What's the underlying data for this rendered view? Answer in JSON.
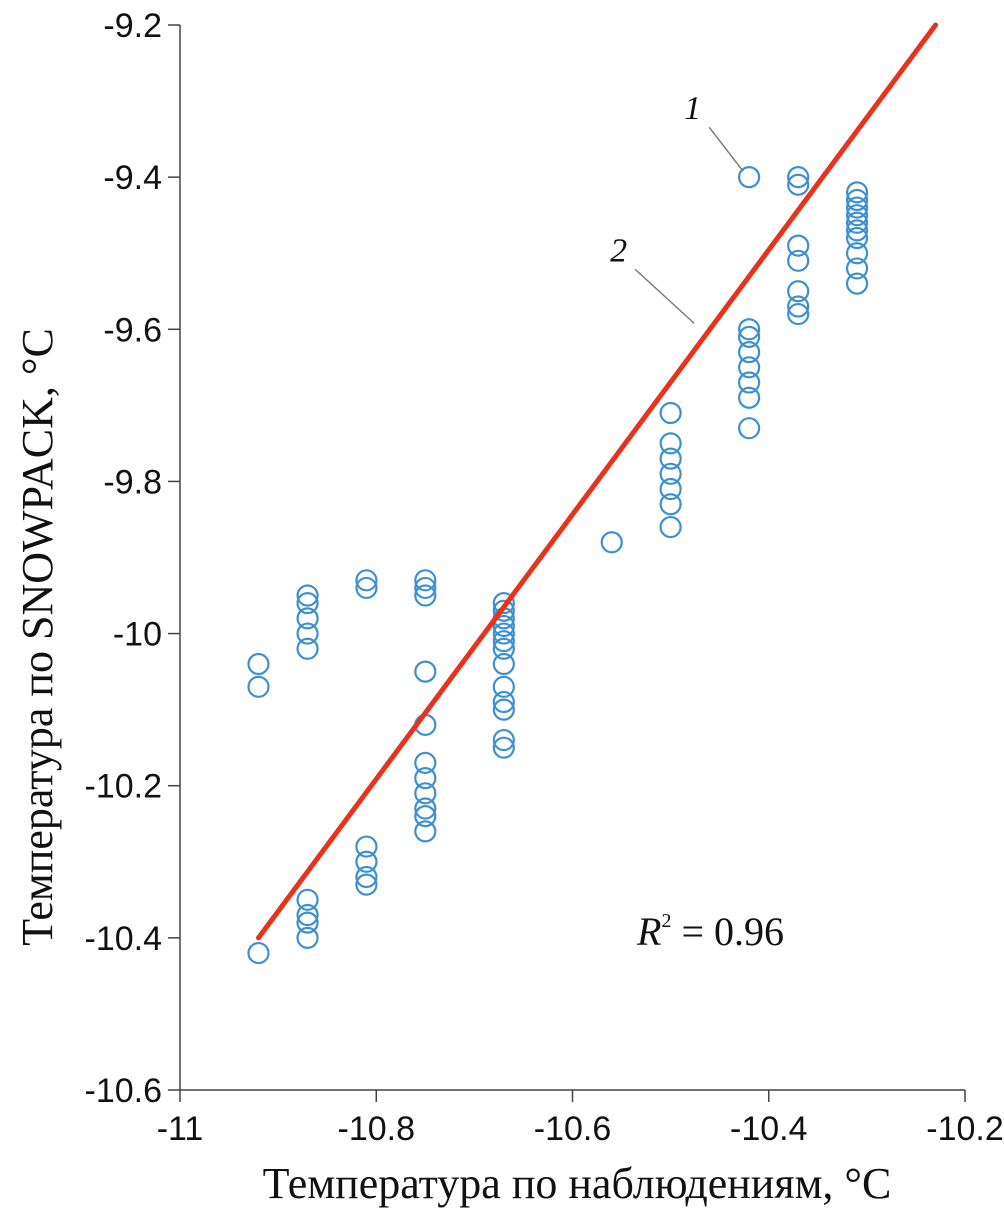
{
  "chart_data": {
    "type": "scatter",
    "title": "",
    "xlabel": "Температура по наблюдениям, °C",
    "ylabel": "Температура по SNOWPACK, °C",
    "xlim": [
      -11,
      -10.2
    ],
    "ylim": [
      -10.6,
      -9.2
    ],
    "x_ticks": [
      -11,
      -10.8,
      -10.6,
      -10.4,
      -10.2
    ],
    "x_tick_labels": [
      "-11",
      "-10.8",
      "-10.6",
      "-10.4",
      "-10.2"
    ],
    "y_ticks": [
      -9.2,
      -9.4,
      -9.6,
      -9.8,
      -10,
      -10.2,
      -10.4,
      -10.6
    ],
    "y_tick_labels": [
      "-9.2",
      "-9.4",
      "-9.6",
      "-9.8",
      "-10",
      "-10.2",
      "-10.4",
      "-10.6"
    ],
    "grid": false,
    "colors": {
      "points": "#3d8fd1",
      "fit_line": "#e8321c"
    },
    "series": [
      {
        "marker": "circle-open",
        "points": [
          [
            -10.92,
            -10.04
          ],
          [
            -10.92,
            -10.07
          ],
          [
            -10.92,
            -10.42
          ],
          [
            -10.87,
            -9.95
          ],
          [
            -10.87,
            -9.96
          ],
          [
            -10.87,
            -9.98
          ],
          [
            -10.87,
            -10.0
          ],
          [
            -10.87,
            -10.02
          ],
          [
            -10.87,
            -10.35
          ],
          [
            -10.87,
            -10.37
          ],
          [
            -10.87,
            -10.38
          ],
          [
            -10.87,
            -10.4
          ],
          [
            -10.81,
            -9.93
          ],
          [
            -10.81,
            -9.94
          ],
          [
            -10.81,
            -10.28
          ],
          [
            -10.81,
            -10.3
          ],
          [
            -10.81,
            -10.32
          ],
          [
            -10.81,
            -10.33
          ],
          [
            -10.75,
            -9.93
          ],
          [
            -10.75,
            -9.94
          ],
          [
            -10.75,
            -9.95
          ],
          [
            -10.75,
            -10.05
          ],
          [
            -10.75,
            -10.12
          ],
          [
            -10.75,
            -10.17
          ],
          [
            -10.75,
            -10.19
          ],
          [
            -10.75,
            -10.21
          ],
          [
            -10.75,
            -10.23
          ],
          [
            -10.75,
            -10.24
          ],
          [
            -10.75,
            -10.26
          ],
          [
            -10.67,
            -9.96
          ],
          [
            -10.67,
            -9.97
          ],
          [
            -10.67,
            -9.98
          ],
          [
            -10.67,
            -9.99
          ],
          [
            -10.67,
            -10.0
          ],
          [
            -10.67,
            -10.01
          ],
          [
            -10.67,
            -10.02
          ],
          [
            -10.67,
            -10.04
          ],
          [
            -10.67,
            -10.07
          ],
          [
            -10.67,
            -10.09
          ],
          [
            -10.67,
            -10.1
          ],
          [
            -10.67,
            -10.14
          ],
          [
            -10.67,
            -10.15
          ],
          [
            -10.56,
            -9.88
          ],
          [
            -10.5,
            -9.71
          ],
          [
            -10.5,
            -9.75
          ],
          [
            -10.5,
            -9.77
          ],
          [
            -10.5,
            -9.79
          ],
          [
            -10.5,
            -9.81
          ],
          [
            -10.5,
            -9.83
          ],
          [
            -10.5,
            -9.86
          ],
          [
            -10.42,
            -9.4
          ],
          [
            -10.42,
            -9.6
          ],
          [
            -10.42,
            -9.61
          ],
          [
            -10.42,
            -9.63
          ],
          [
            -10.42,
            -9.65
          ],
          [
            -10.42,
            -9.67
          ],
          [
            -10.42,
            -9.69
          ],
          [
            -10.42,
            -9.73
          ],
          [
            -10.37,
            -9.4
          ],
          [
            -10.37,
            -9.41
          ],
          [
            -10.37,
            -9.49
          ],
          [
            -10.37,
            -9.51
          ],
          [
            -10.37,
            -9.55
          ],
          [
            -10.37,
            -9.57
          ],
          [
            -10.37,
            -9.58
          ],
          [
            -10.31,
            -9.42
          ],
          [
            -10.31,
            -9.43
          ],
          [
            -10.31,
            -9.44
          ],
          [
            -10.31,
            -9.45
          ],
          [
            -10.31,
            -9.46
          ],
          [
            -10.31,
            -9.47
          ],
          [
            -10.31,
            -9.48
          ],
          [
            -10.31,
            -9.5
          ],
          [
            -10.31,
            -9.52
          ],
          [
            -10.31,
            -9.54
          ]
        ]
      }
    ],
    "fit_line": {
      "x": [
        -10.92,
        -10.23
      ],
      "y": [
        -10.4,
        -9.2
      ]
    },
    "annotations": [
      {
        "text": "1",
        "target": [
          -10.42,
          -9.4
        ]
      },
      {
        "text": "2",
        "target": [
          -10.47,
          -9.6
        ]
      }
    ],
    "r2_label": {
      "prefix": "R",
      "sup": "2",
      "rest": " = 0.96"
    }
  }
}
